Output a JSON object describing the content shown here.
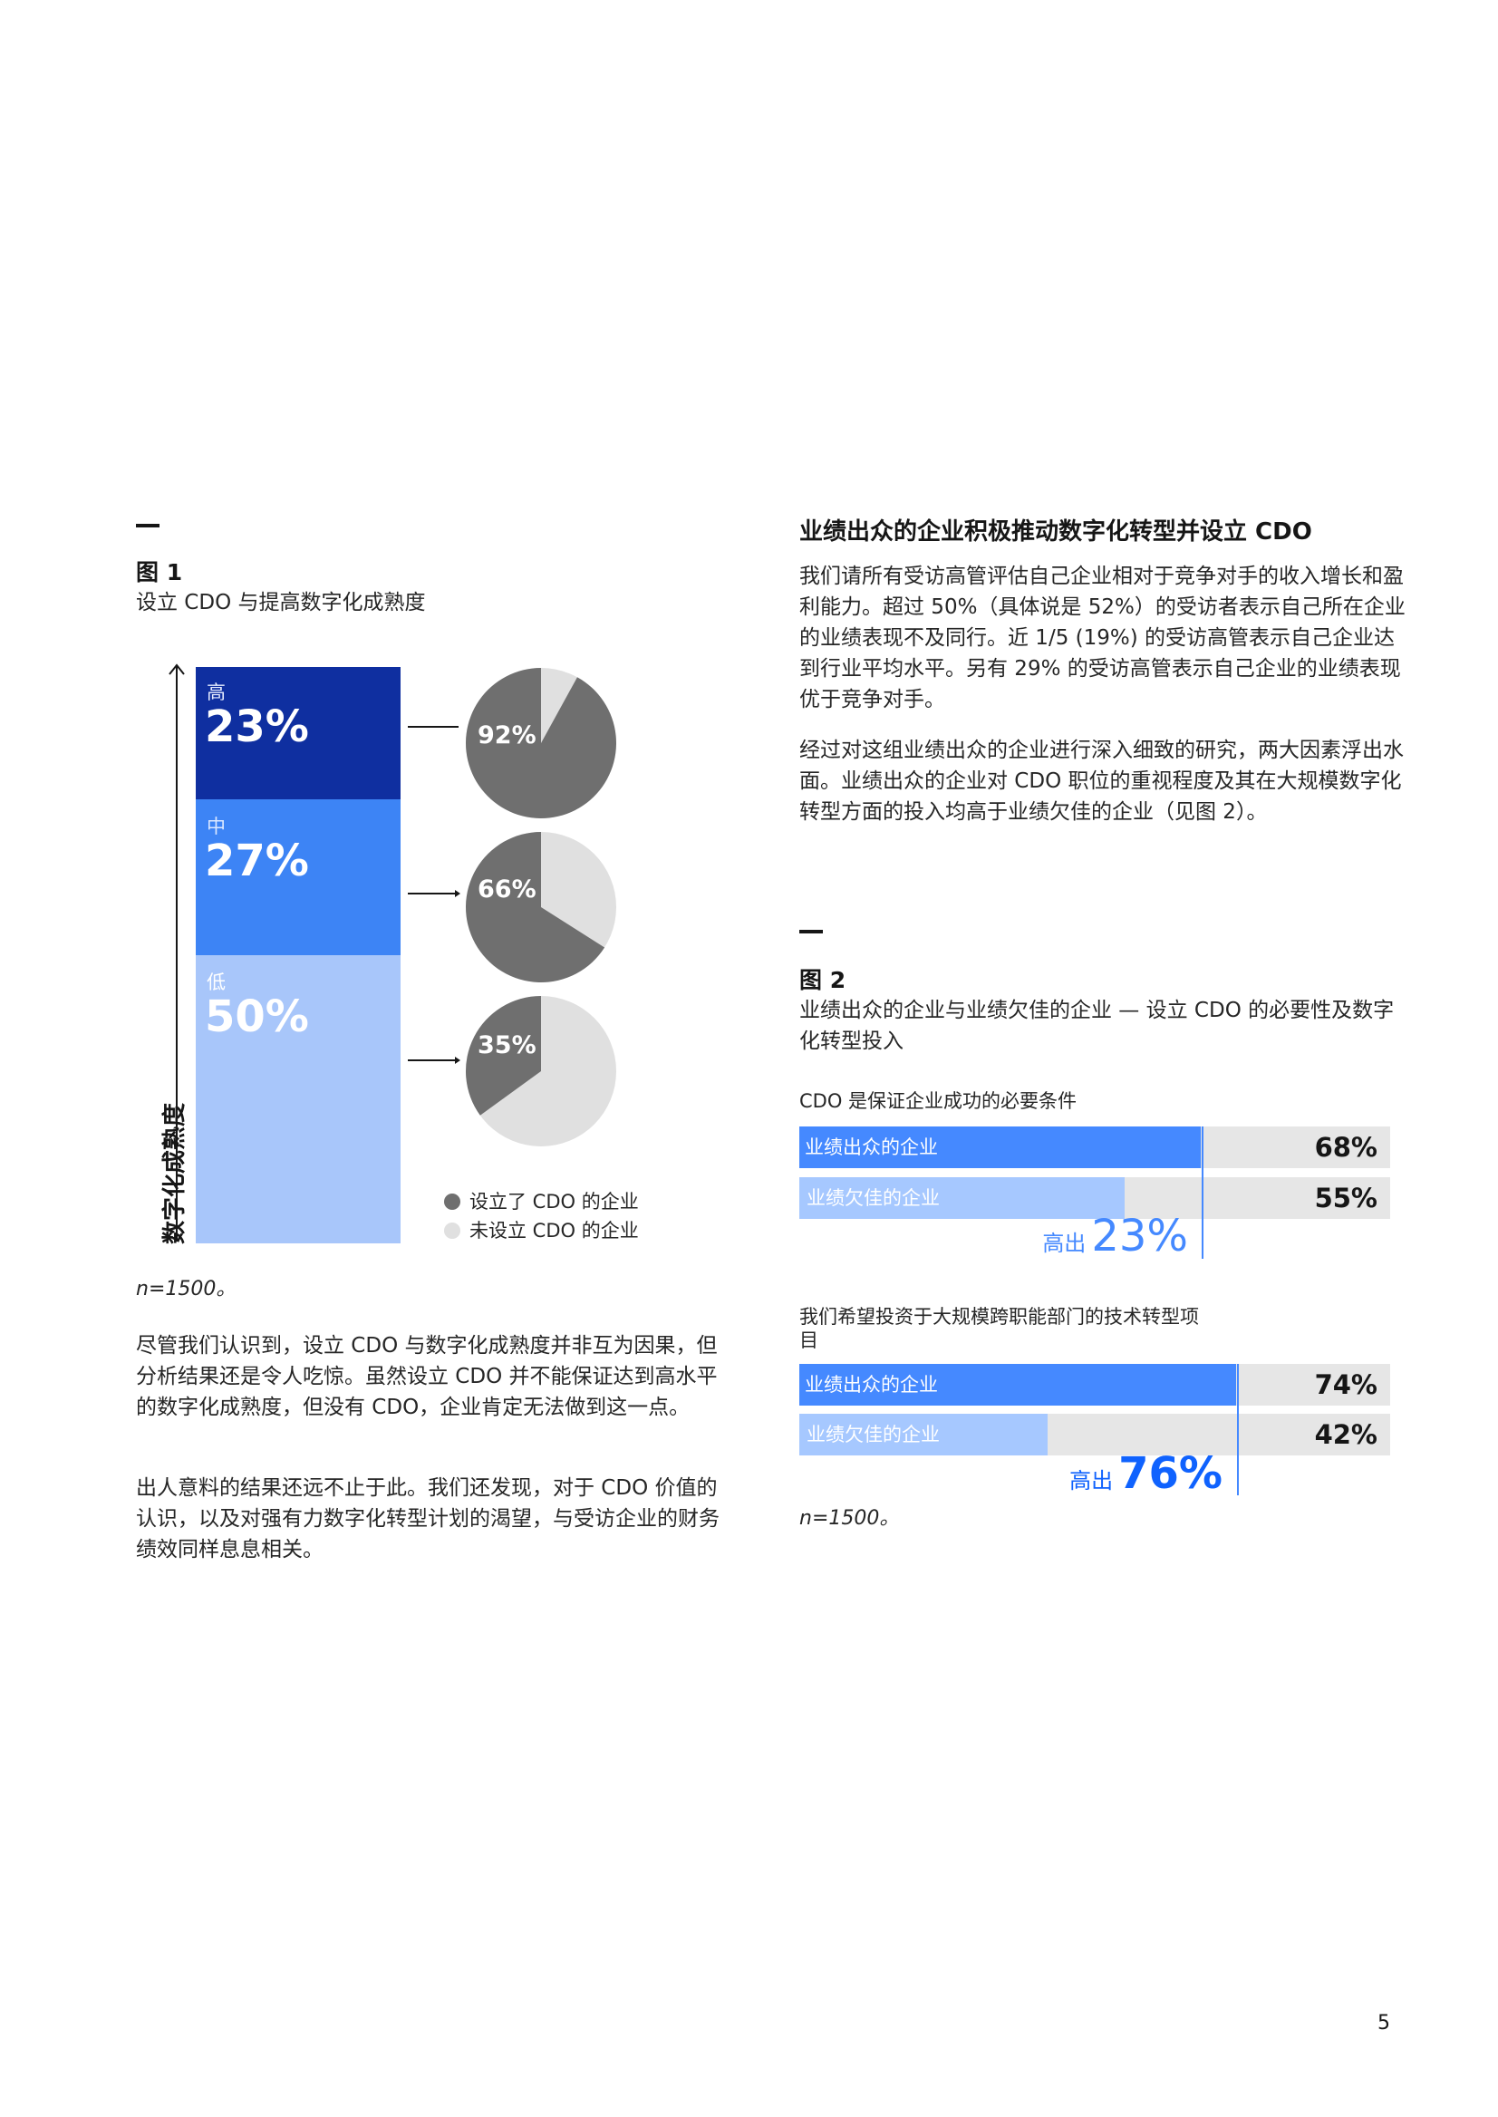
{
  "figure1": {
    "label": "图 1",
    "title": "设立 CDO 与提高数字化成熟度",
    "axis_label": "数字化成熟度",
    "tiers": [
      {
        "name": "高",
        "percent": "23%",
        "color": "#0f2fa0",
        "cdo_share": 92,
        "cdo_label": "92%"
      },
      {
        "name": "中",
        "percent": "27%",
        "color": "#3d84f5",
        "cdo_share": 66,
        "cdo_label": "66%"
      },
      {
        "name": "低",
        "percent": "50%",
        "color": "#a8c6fa",
        "cdo_share": 35,
        "cdo_label": "35%"
      }
    ],
    "legend": [
      {
        "label": "设立了 CDO 的企业",
        "color": "#6f6f6f"
      },
      {
        "label": "未设立 CDO 的企业",
        "color": "#e0e0e0"
      }
    ],
    "note": "n=1500。"
  },
  "left_paragraphs": [
    "尽管我们认识到，设立 CDO 与数字化成熟度并非互为因果，但分析结果还是令人吃惊。虽然设立 CDO 并不能保证达到高水平的数字化成熟度，但没有 CDO，企业肯定无法做到这一点。",
    "出人意料的结果还远不止于此。我们还发现，对于 CDO 价值的认识，以及对强有力数字化转型计划的渴望，与受访企业的财务绩效同样息息相关。"
  ],
  "right_section": {
    "heading": "业绩出众的企业积极推动数字化转型并设立 CDO",
    "paragraphs": [
      "我们请所有受访高管评估自己企业相对于竞争对手的收入增长和盈利能力。超过 50%（具体说是 52%）的受访者表示自己所在企业的业绩表现不及同行。近 1/5 (19%) 的受访高管表示自己企业达到行业平均水平。另有 29% 的受访高管表示自己企业的业绩表现优于竞争对手。",
      "经过对这组业绩出众的企业进行深入细致的研究，两大因素浮出水面。业绩出众的企业对 CDO 职位的重视程度及其在大规模数字化转型方面的投入均高于业绩欠佳的企业（见图 2）。"
    ]
  },
  "figure2": {
    "label": "图 2",
    "title": "业绩出众的企业与业绩欠佳的企业 — 设立 CDO 的必要性及数字化转型投入",
    "groups": [
      {
        "subtitle": "CDO 是保证企业成功的必要条件",
        "bars": [
          {
            "label": "业绩出众的企业",
            "value": 68,
            "value_label": "68%",
            "color": "#4589ff"
          },
          {
            "label": "业绩欠佳的企业",
            "value": 55,
            "value_label": "55%",
            "color": "#a6c8ff"
          }
        ],
        "diff_prefix": "高出",
        "diff_value": "23%"
      },
      {
        "subtitle": "我们希望投资于大规模跨职能部门的技术转型项目",
        "bars": [
          {
            "label": "业绩出众的企业",
            "value": 74,
            "value_label": "74%",
            "color": "#4589ff"
          },
          {
            "label": "业绩欠佳的企业",
            "value": 42,
            "value_label": "42%",
            "color": "#a6c8ff"
          }
        ],
        "diff_prefix": "高出",
        "diff_value": "76%"
      }
    ],
    "note": "n=1500。"
  },
  "page_number": "5"
}
